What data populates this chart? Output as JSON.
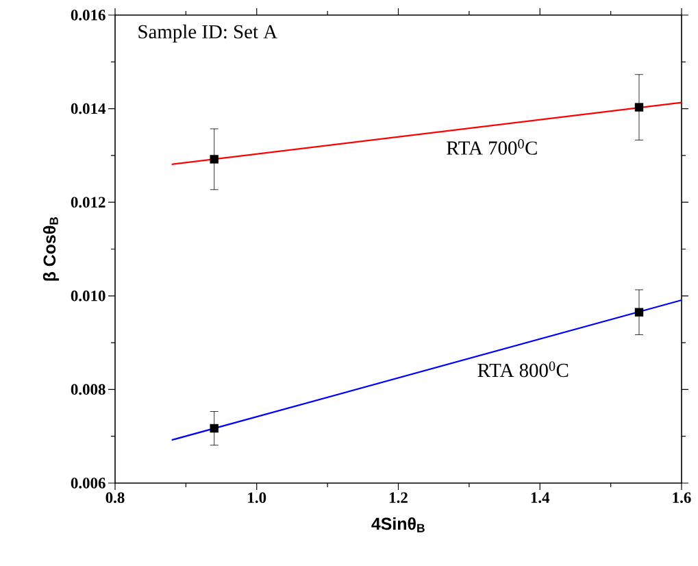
{
  "chart_data": {
    "type": "scatter",
    "xlabel": "4Sinθ$_{B}$",
    "ylabel": "β Cosθ$_{B}$",
    "annotations": [
      "Sample ID: Set A",
      "RTA 700$^{0}$C",
      "RTA 800$^{0}$C"
    ],
    "xlim": [
      0.8,
      1.6
    ],
    "ylim": [
      0.006,
      0.016
    ],
    "xticks": [
      {
        "value": 0.8,
        "label": "0.8"
      },
      {
        "value": 1.0,
        "label": "1.0"
      },
      {
        "value": 1.2,
        "label": "1.2"
      },
      {
        "value": 1.4,
        "label": "1.4"
      },
      {
        "value": 1.6,
        "label": "1.6"
      }
    ],
    "yticks": [
      {
        "value": 0.006,
        "label": "0.006"
      },
      {
        "value": 0.008,
        "label": "0.008"
      },
      {
        "value": 0.01,
        "label": "0.010"
      },
      {
        "value": 0.012,
        "label": "0.012"
      },
      {
        "value": 0.014,
        "label": "0.014"
      },
      {
        "value": 0.016,
        "label": "0.016"
      }
    ],
    "marker": "square",
    "grid": false,
    "series": [
      {
        "type": "line",
        "color": "#ff0000",
        "x": [
          0.88,
          1.6
        ],
        "values": [
          0.01281,
          0.01413
        ],
        "marker": "none"
      },
      {
        "type": "line",
        "color": "#0000ff",
        "x": [
          0.88,
          1.6
        ],
        "values": [
          0.00692,
          0.00991
        ],
        "marker": "none"
      },
      {
        "color": "#000000",
        "x": [
          0.94,
          1.54
        ],
        "values": [
          0.01292,
          0.01403
        ],
        "errors": [
          0.00065,
          0.0007
        ]
      },
      {
        "color": "#000000",
        "x": [
          0.94,
          1.54
        ],
        "values": [
          0.00717,
          0.00965
        ],
        "errors": [
          0.00036,
          0.00048
        ]
      }
    ]
  }
}
